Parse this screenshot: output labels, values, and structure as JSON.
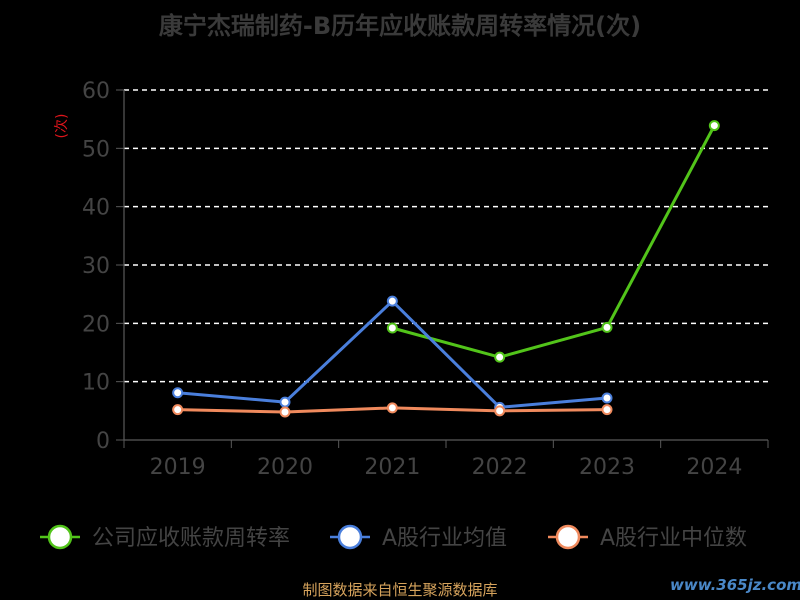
{
  "chart_data": {
    "type": "line",
    "title": "康宁杰瑞制药-B历年应收账款周转率情况(次)",
    "unit_label": "(次)",
    "categories": [
      "2019",
      "2020",
      "2021",
      "2022",
      "2023",
      "2024"
    ],
    "ylim": [
      0,
      60
    ],
    "yticks": [
      "0",
      "10",
      "20",
      "30",
      "40",
      "50",
      "60"
    ],
    "grid": true,
    "legend_position": "bottom",
    "series": [
      {
        "name": "公司应收账款周转率",
        "color": "#52c41a",
        "values": [
          null,
          null,
          19.2,
          14.2,
          19.3,
          53.9
        ]
      },
      {
        "name": "A股行业均值",
        "color": "#4a7fdc",
        "values": [
          8.1,
          6.5,
          23.8,
          5.6,
          7.2,
          null
        ]
      },
      {
        "name": "A股行业中位数",
        "color": "#f08a5d",
        "values": [
          5.2,
          4.8,
          5.5,
          5.0,
          5.2,
          null
        ]
      }
    ]
  },
  "footer": {
    "source": "制图数据来自恒生聚源数据库",
    "watermark": "www.365jz.com"
  }
}
